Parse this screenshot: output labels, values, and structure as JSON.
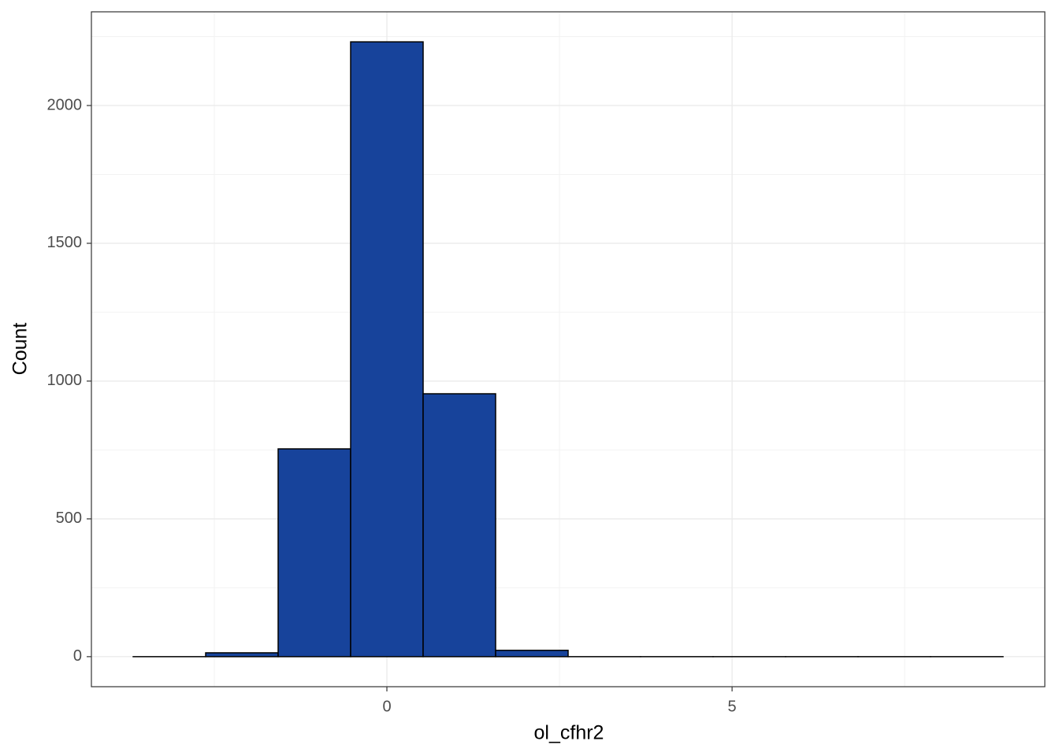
{
  "chart_data": {
    "type": "histogram",
    "x_label": "ol_cfhr2",
    "y_label": "Count",
    "bins": [
      -3.675,
      -2.625,
      -1.575,
      -0.525,
      0.525,
      1.575,
      2.625,
      3.675,
      4.725,
      5.775,
      6.825,
      7.875,
      8.925
    ],
    "values": [
      0,
      14,
      754,
      2231,
      954,
      23,
      0,
      0,
      0,
      0,
      0,
      0
    ],
    "color": "#17439b",
    "edge_color": "#000000",
    "xlim": [
      -4.28,
      9.53
    ],
    "ylim": [
      -109,
      2340
    ],
    "xticks": [
      0,
      5
    ],
    "yticks": [
      0,
      500,
      1000,
      1500,
      2000
    ],
    "grid": true
  }
}
